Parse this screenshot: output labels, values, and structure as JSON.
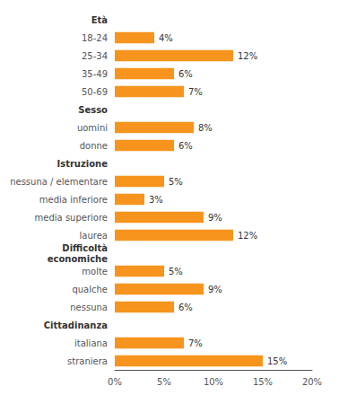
{
  "chart_data": {
    "type": "bar",
    "orientation": "horizontal",
    "categories": [
      "Età",
      "18-24",
      "25-34",
      "35-49",
      "50-69",
      "Sesso",
      "uomini",
      "donne",
      "Istruzione",
      "nessuna / elementare",
      "media inferiore",
      "media superiore",
      "laurea",
      "Difficoltà\neconomiche",
      "molte",
      "qualche",
      "nessuna",
      "Cittadinanza",
      "italiana",
      "straniera"
    ],
    "values": [
      null,
      4,
      12,
      6,
      7,
      null,
      8,
      6,
      null,
      5,
      3,
      9,
      12,
      null,
      5,
      9,
      6,
      null,
      7,
      15
    ],
    "value_labels": [
      null,
      "4%",
      "12%",
      "6%",
      "7%",
      null,
      "8%",
      "6%",
      null,
      "5%",
      "3%",
      "9%",
      "12%",
      null,
      "5%",
      "9%",
      "6%",
      null,
      "7%",
      "15%"
    ],
    "color": "#F7941D",
    "xlim": [
      0,
      20
    ],
    "xticks": [
      {
        "value": 0,
        "label": "0%"
      },
      {
        "value": 5,
        "label": "5%"
      },
      {
        "value": 10,
        "label": "10%"
      },
      {
        "value": 15,
        "label": "15%"
      },
      {
        "value": 20,
        "label": "20%"
      }
    ],
    "grid": false
  }
}
